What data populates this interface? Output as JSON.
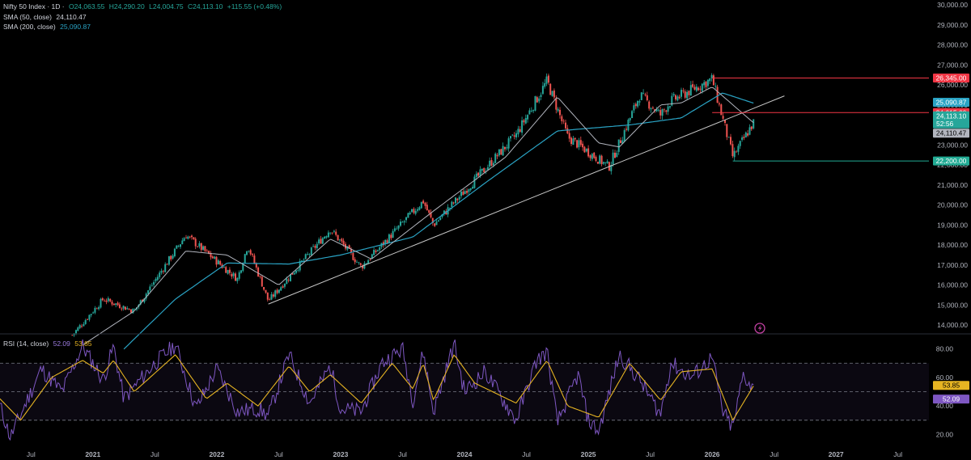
{
  "header": {
    "symbol": "Nifty 50 Index · 1D ·",
    "open": "O24,063.55",
    "high": "H24,290.20",
    "low": "L24,004.75",
    "close": "C24,113.10",
    "change": "+115.55 (+0.48%)",
    "sma50_label": "SMA (50, close)",
    "sma50_value": "24,110.47",
    "sma200_label": "SMA (200, close)",
    "sma200_value": "25,090.87",
    "rsi_label": "RSI (14, close)",
    "rsi_value": "52.09",
    "rsi_ma_value": "53.85"
  },
  "colors": {
    "background": "#000000",
    "up": "#26a69a",
    "down": "#ef5350",
    "sma50": "#b2b5be",
    "sma200": "#2aa3c4",
    "rsi": "#7e57c2",
    "rsi_ma": "#e6b422",
    "trendline": "#c8c8c8",
    "resistance": "#f23645",
    "support": "#22ab94"
  },
  "chart_data": [
    {
      "type": "candlestick",
      "title": "",
      "x_start": "2020-04",
      "x_end": "2027-10",
      "x_tick_labels": [
        "Jul",
        "2021",
        "Jul",
        "2022",
        "Jul",
        "2023",
        "Jul",
        "2024",
        "Jul",
        "2025",
        "Jul",
        "2026",
        "Jul",
        "2027",
        "Jul"
      ],
      "y_ticks": [
        14000,
        15000,
        16000,
        17000,
        18000,
        19000,
        20000,
        21000,
        22000,
        23000,
        24000,
        25000,
        26000,
        27000,
        28000,
        29000,
        30000
      ],
      "y_tick_labels": [
        "14,000.00",
        "15,000.00",
        "16,000.00",
        "17,000.00",
        "18,000.00",
        "19,000.00",
        "20,000.00",
        "21,000.00",
        "22,000.00",
        "23,000.00",
        "24,000.00",
        "25,000.00",
        "26,000.00",
        "27,000.00",
        "28,000.00",
        "29,000.00",
        "30,000.00"
      ],
      "ylim": [
        13600,
        30000
      ],
      "price_path": [
        {
          "date": "2020-11",
          "value": 13500
        },
        {
          "date": "2021-02",
          "value": 15300
        },
        {
          "date": "2021-05",
          "value": 14700
        },
        {
          "date": "2021-10",
          "value": 18500
        },
        {
          "date": "2022-03",
          "value": 16300
        },
        {
          "date": "2022-04",
          "value": 18000
        },
        {
          "date": "2022-06",
          "value": 15200
        },
        {
          "date": "2022-12",
          "value": 18800
        },
        {
          "date": "2023-03",
          "value": 16900
        },
        {
          "date": "2023-09",
          "value": 20200
        },
        {
          "date": "2023-10",
          "value": 19000
        },
        {
          "date": "2024-06",
          "value": 23500
        },
        {
          "date": "2024-09",
          "value": 26200
        },
        {
          "date": "2024-11",
          "value": 23400
        },
        {
          "date": "2025-03",
          "value": 21900
        },
        {
          "date": "2025-06",
          "value": 25500
        },
        {
          "date": "2025-08",
          "value": 24500
        },
        {
          "date": "2025-09",
          "value": 25200
        },
        {
          "date": "2026-01",
          "value": 26300
        },
        {
          "date": "2026-03",
          "value": 22400
        },
        {
          "date": "2026-05",
          "value": 24113
        }
      ],
      "sma50_path": [
        {
          "date": "2020-12",
          "value": 13000
        },
        {
          "date": "2021-05",
          "value": 14700
        },
        {
          "date": "2021-10",
          "value": 17700
        },
        {
          "date": "2022-02",
          "value": 17500
        },
        {
          "date": "2022-07",
          "value": 16000
        },
        {
          "date": "2022-12",
          "value": 18300
        },
        {
          "date": "2023-04",
          "value": 17300
        },
        {
          "date": "2023-10",
          "value": 19700
        },
        {
          "date": "2024-05",
          "value": 22400
        },
        {
          "date": "2024-10",
          "value": 25400
        },
        {
          "date": "2025-02",
          "value": 23100
        },
        {
          "date": "2025-04",
          "value": 22900
        },
        {
          "date": "2025-08",
          "value": 25000
        },
        {
          "date": "2025-10",
          "value": 25100
        },
        {
          "date": "2026-01",
          "value": 25900
        },
        {
          "date": "2026-05",
          "value": 24110
        }
      ],
      "sma200_path": [
        {
          "date": "2021-04",
          "value": 12800
        },
        {
          "date": "2021-09",
          "value": 15300
        },
        {
          "date": "2022-02",
          "value": 17100
        },
        {
          "date": "2022-08",
          "value": 17050
        },
        {
          "date": "2023-01",
          "value": 17500
        },
        {
          "date": "2023-08",
          "value": 18400
        },
        {
          "date": "2024-03",
          "value": 21100
        },
        {
          "date": "2024-10",
          "value": 23700
        },
        {
          "date": "2025-05",
          "value": 24000
        },
        {
          "date": "2025-10",
          "value": 24350
        },
        {
          "date": "2026-02",
          "value": 25600
        },
        {
          "date": "2026-05",
          "value": 25091
        }
      ],
      "trendline": [
        {
          "date": "2022-06",
          "value": 15050
        },
        {
          "date": "2026-08",
          "value": 25450
        }
      ],
      "levels": [
        {
          "name": "resistance-high",
          "value": 26345,
          "label": "26,345.00",
          "from": "2026-01"
        },
        {
          "name": "resistance",
          "value": 24615,
          "label": "24,615.00",
          "from": "2026-01"
        },
        {
          "name": "support",
          "value": 22200,
          "label": "22,200.00",
          "from": "2026-03"
        }
      ],
      "price_tags": {
        "sma200": "25,090.87",
        "last": "24,113.10",
        "countdown": "52:56",
        "sma50": "24,110.47"
      }
    },
    {
      "type": "line",
      "title": "",
      "ylim": [
        14,
        90
      ],
      "y_ticks": [
        20,
        40,
        60,
        80
      ],
      "y_tick_labels": [
        "20.00",
        "40.00",
        "60.00",
        "80.00"
      ],
      "bands": {
        "upper": 70,
        "middle": 50,
        "lower": 30
      },
      "series": [
        {
          "name": "RSI",
          "last_label": "52.09"
        },
        {
          "name": "MA",
          "last_label": "53.85"
        }
      ],
      "rsi_path": [
        {
          "date": "2020-04",
          "value": 40
        },
        {
          "date": "2020-05",
          "value": 18
        },
        {
          "date": "2020-08",
          "value": 66
        },
        {
          "date": "2020-10",
          "value": 50
        },
        {
          "date": "2020-12",
          "value": 82
        },
        {
          "date": "2021-02",
          "value": 58
        },
        {
          "date": "2021-03",
          "value": 82
        },
        {
          "date": "2021-04",
          "value": 45
        },
        {
          "date": "2021-07",
          "value": 70
        },
        {
          "date": "2021-09",
          "value": 83
        },
        {
          "date": "2021-11",
          "value": 38
        },
        {
          "date": "2022-01",
          "value": 66
        },
        {
          "date": "2022-03",
          "value": 36
        },
        {
          "date": "2022-05",
          "value": 38
        },
        {
          "date": "2022-06",
          "value": 33
        },
        {
          "date": "2022-08",
          "value": 76
        },
        {
          "date": "2022-10",
          "value": 42
        },
        {
          "date": "2022-12",
          "value": 68
        },
        {
          "date": "2023-01",
          "value": 38
        },
        {
          "date": "2023-03",
          "value": 36
        },
        {
          "date": "2023-05",
          "value": 70
        },
        {
          "date": "2023-07",
          "value": 80
        },
        {
          "date": "2023-08",
          "value": 44
        },
        {
          "date": "2023-09",
          "value": 78
        },
        {
          "date": "2023-10",
          "value": 36
        },
        {
          "date": "2023-12",
          "value": 84
        },
        {
          "date": "2024-01",
          "value": 50
        },
        {
          "date": "2024-03",
          "value": 64
        },
        {
          "date": "2024-06",
          "value": 30
        },
        {
          "date": "2024-08",
          "value": 72
        },
        {
          "date": "2024-09",
          "value": 78
        },
        {
          "date": "2024-10",
          "value": 28
        },
        {
          "date": "2024-12",
          "value": 62
        },
        {
          "date": "2025-01",
          "value": 30
        },
        {
          "date": "2025-02",
          "value": 22
        },
        {
          "date": "2025-04",
          "value": 76
        },
        {
          "date": "2025-06",
          "value": 58
        },
        {
          "date": "2025-08",
          "value": 34
        },
        {
          "date": "2025-09",
          "value": 70
        },
        {
          "date": "2025-11",
          "value": 60
        },
        {
          "date": "2026-01",
          "value": 74
        },
        {
          "date": "2026-02",
          "value": 36
        },
        {
          "date": "2026-03",
          "value": 24
        },
        {
          "date": "2026-04",
          "value": 62
        },
        {
          "date": "2026-05",
          "value": 52
        }
      ],
      "rsi_ma_path": [
        {
          "date": "2020-04",
          "value": 45
        },
        {
          "date": "2020-06",
          "value": 30
        },
        {
          "date": "2020-09",
          "value": 60
        },
        {
          "date": "2020-12",
          "value": 72
        },
        {
          "date": "2021-02",
          "value": 63
        },
        {
          "date": "2021-03",
          "value": 72
        },
        {
          "date": "2021-05",
          "value": 50
        },
        {
          "date": "2021-09",
          "value": 76
        },
        {
          "date": "2021-12",
          "value": 45
        },
        {
          "date": "2022-02",
          "value": 56
        },
        {
          "date": "2022-05",
          "value": 40
        },
        {
          "date": "2022-08",
          "value": 68
        },
        {
          "date": "2022-10",
          "value": 50
        },
        {
          "date": "2022-12",
          "value": 62
        },
        {
          "date": "2023-03",
          "value": 42
        },
        {
          "date": "2023-06",
          "value": 70
        },
        {
          "date": "2023-08",
          "value": 52
        },
        {
          "date": "2023-09",
          "value": 70
        },
        {
          "date": "2023-10",
          "value": 44
        },
        {
          "date": "2023-12",
          "value": 76
        },
        {
          "date": "2024-02",
          "value": 56
        },
        {
          "date": "2024-06",
          "value": 42
        },
        {
          "date": "2024-09",
          "value": 72
        },
        {
          "date": "2024-11",
          "value": 40
        },
        {
          "date": "2025-02",
          "value": 32
        },
        {
          "date": "2025-05",
          "value": 70
        },
        {
          "date": "2025-08",
          "value": 44
        },
        {
          "date": "2025-10",
          "value": 64
        },
        {
          "date": "2026-01",
          "value": 66
        },
        {
          "date": "2026-03",
          "value": 30
        },
        {
          "date": "2026-05",
          "value": 54
        }
      ]
    }
  ]
}
